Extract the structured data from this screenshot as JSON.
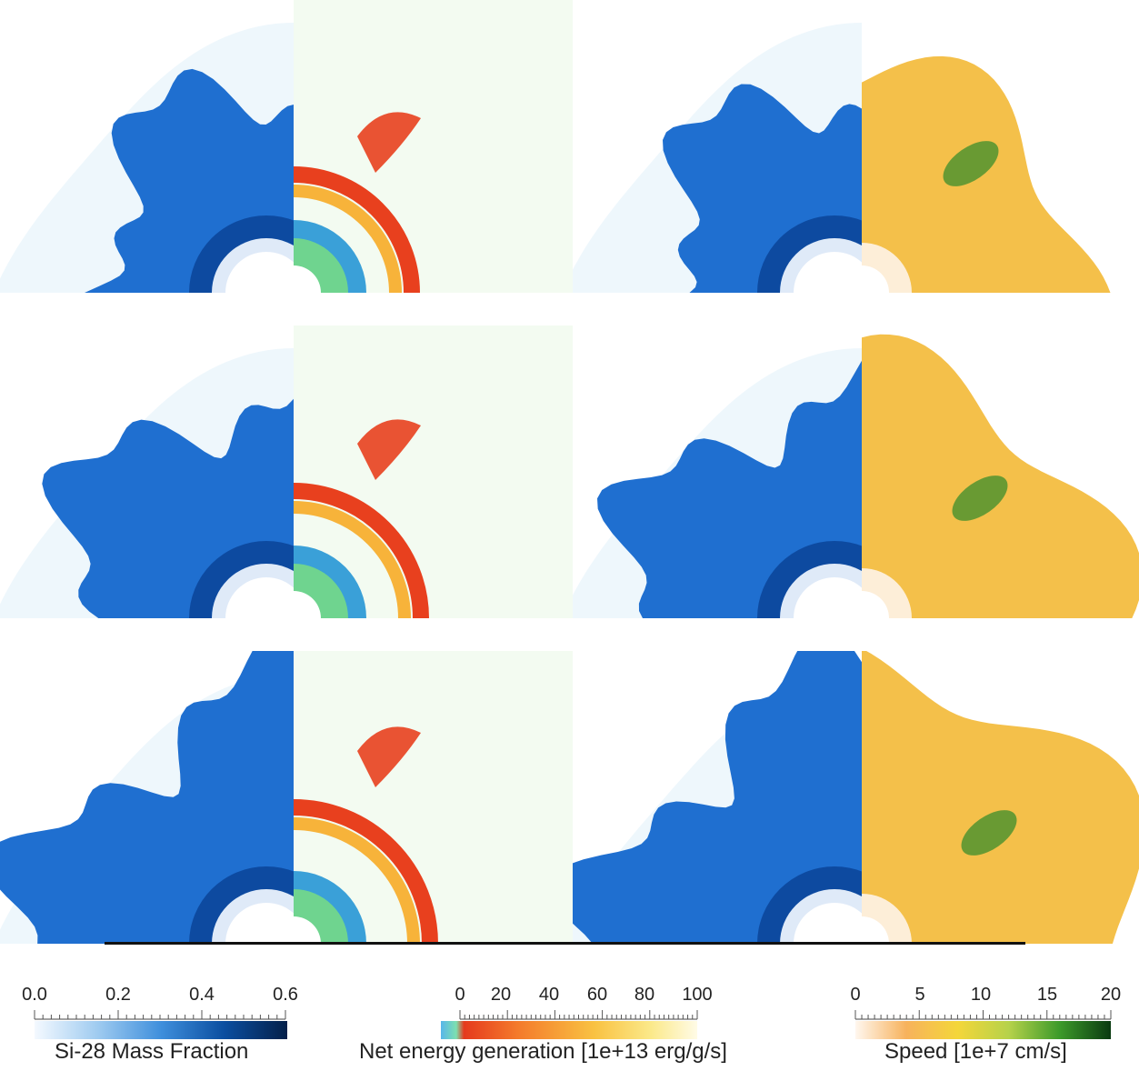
{
  "colorbars": {
    "si28": {
      "title": "Si-28 Mass Fraction",
      "ticks": [
        "0.0",
        "0.2",
        "0.4",
        "0.6"
      ],
      "range": [
        0.0,
        0.6
      ],
      "colors": [
        "#f4f9ff",
        "#9fcbf0",
        "#3f8fdc",
        "#0b4ea0",
        "#04204a"
      ]
    },
    "energy": {
      "title": "Net energy generation [1e+13 erg/g/s]",
      "ticks": [
        "0",
        "20",
        "40",
        "60",
        "80",
        "100"
      ],
      "range": [
        0,
        100
      ],
      "colors": [
        "#58b6ea",
        "#7ce0b0",
        "#e53a1d",
        "#f47a2b",
        "#f9c242",
        "#fbe98a",
        "#fffbe6"
      ]
    },
    "speed": {
      "title": "Speed [1e+7 cm/s]",
      "ticks": [
        "0",
        "5",
        "10",
        "15",
        "20"
      ],
      "range": [
        0,
        20
      ],
      "colors": [
        "#fff7ef",
        "#f7b25c",
        "#f4d63a",
        "#b6d24a",
        "#3c9a2a",
        "#0a3a10"
      ]
    }
  },
  "panel_colors": {
    "si_fill": "#1f6fd0",
    "si_dark": "#0d4aa0",
    "si_bg": "#eef7fc",
    "core": "#ffffff",
    "energy_hot": "#e8401e",
    "energy_mid": "#f7b33a",
    "energy_bg": "#f3fbf1",
    "speed_fill": "#f4c04a",
    "speed_green": "#2e8a2a"
  }
}
